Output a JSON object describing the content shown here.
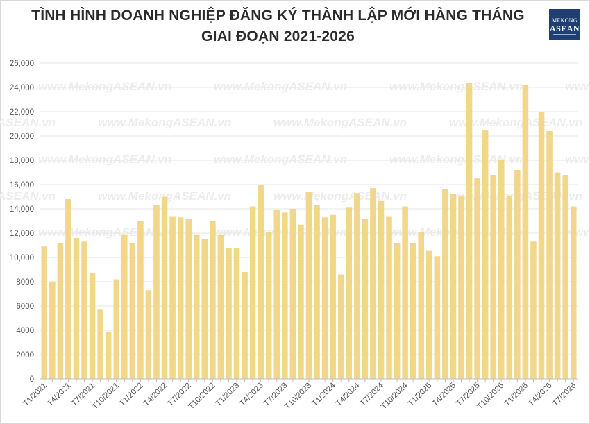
{
  "title": "TÌNH HÌNH DOANH NGHIỆP ĐĂNG KÝ THÀNH LẬP MỚI HÀNG THÁNG GIAI ĐOẠN 2021-2026",
  "logo": {
    "line1": "MEKONG",
    "line2": "ASEAN"
  },
  "watermark": "www.MekongASEAN.vn",
  "colors": {
    "bar": "#F2D68A",
    "grid": "#e6e6e6",
    "axis": "#bdbdbd"
  },
  "chart_data": {
    "type": "bar",
    "title": "TÌNH HÌNH DOANH NGHIỆP ĐĂNG KÝ THÀNH LẬP MỚI HÀNG THÁNG GIAI ĐOẠN 2021-2026",
    "xlabel": "",
    "ylabel": "",
    "ylim": [
      0,
      26000
    ],
    "grid": true,
    "yticks": [
      0,
      2000,
      4000,
      6000,
      8000,
      10000,
      12000,
      14000,
      16000,
      18000,
      20000,
      22000,
      24000,
      26000
    ],
    "ytick_labels": [
      "0",
      "2000",
      "4000",
      "6000",
      "8000",
      "10,000",
      "12,000",
      "14,000",
      "16,000",
      "18,000",
      "20,000",
      "22,000",
      "24,000",
      "26,000"
    ],
    "xtick_labels": [
      "T1/2021",
      "T4/2021",
      "T7/2021",
      "T10/2021",
      "T1/2022",
      "T4/2022",
      "T7/2022",
      "T10/2022",
      "T1/2023",
      "T4/2023",
      "T7/2023",
      "T10/2023",
      "T1/2024",
      "T4/2024",
      "T7/2024",
      "T10/2024",
      "T1/2025",
      "T4/2025",
      "T7/2025",
      "T10/2025",
      "T1/2026",
      "T4/2026",
      "T7/2026"
    ],
    "categories": [
      "T1/2021",
      "T2/2021",
      "T3/2021",
      "T4/2021",
      "T5/2021",
      "T6/2021",
      "T7/2021",
      "T8/2021",
      "T9/2021",
      "T10/2021",
      "T11/2021",
      "T12/2021",
      "T1/2022",
      "T2/2022",
      "T3/2022",
      "T4/2022",
      "T5/2022",
      "T6/2022",
      "T7/2022",
      "T8/2022",
      "T9/2022",
      "T10/2022",
      "T11/2022",
      "T12/2022",
      "T1/2023",
      "T2/2023",
      "T3/2023",
      "T4/2023",
      "T5/2023",
      "T6/2023",
      "T7/2023",
      "T8/2023",
      "T9/2023",
      "T10/2023",
      "T11/2023",
      "T12/2023",
      "T1/2024",
      "T2/2024",
      "T3/2024",
      "T4/2024",
      "T5/2024",
      "T6/2024",
      "T7/2024",
      "T8/2024",
      "T9/2024",
      "T10/2024",
      "T11/2024",
      "T12/2024",
      "T1/2025",
      "T2/2025",
      "T3/2025",
      "T4/2025",
      "T5/2025",
      "T6/2025",
      "T7/2025",
      "T8/2025",
      "T9/2025",
      "T10/2025",
      "T11/2025",
      "T12/2025",
      "T1/2026",
      "T2/2026",
      "T3/2026",
      "T4/2026",
      "T5/2026",
      "T6/2026",
      "T7/2026"
    ],
    "values": [
      10900,
      8000,
      11200,
      14800,
      11600,
      11300,
      8700,
      5700,
      3900,
      8200,
      11900,
      11200,
      13000,
      7300,
      14300,
      15000,
      13400,
      13300,
      13200,
      11900,
      11500,
      13000,
      11900,
      10800,
      10800,
      8800,
      14200,
      16000,
      12100,
      13900,
      13700,
      14000,
      12700,
      15400,
      14300,
      13300,
      13500,
      8600,
      14100,
      15300,
      13200,
      15700,
      14700,
      13400,
      11200,
      14200,
      11200,
      12100,
      10600,
      10100,
      15600,
      15200,
      15100,
      24400,
      16500,
      20500,
      16800,
      18000,
      15100,
      17200,
      24200,
      11300,
      22000,
      20400,
      17000,
      16800,
      14200
    ]
  }
}
